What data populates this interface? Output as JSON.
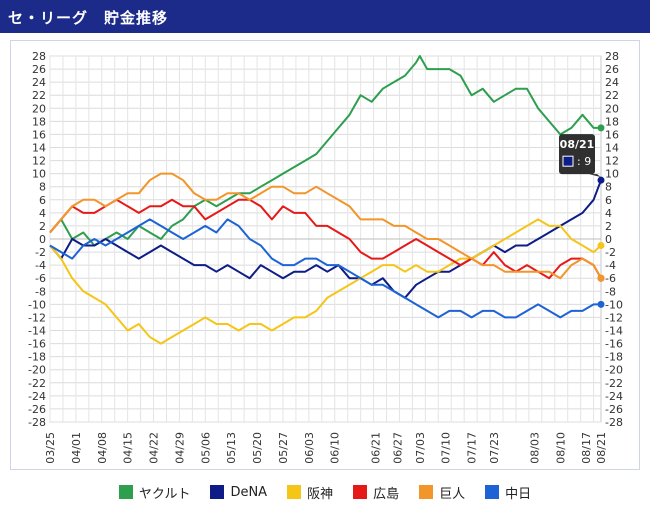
{
  "header": {
    "title": "セ・リーグ　貯金推移"
  },
  "tooltip": {
    "date": "08/21",
    "value": "9"
  },
  "legend": [
    {
      "label": "ヤクルト",
      "color": "#2e9e4f"
    },
    {
      "label": "DeNA",
      "color": "#0e1c87"
    },
    {
      "label": "阪神",
      "color": "#f5c518"
    },
    {
      "label": "広島",
      "color": "#e61919"
    },
    {
      "label": "巨人",
      "color": "#f2952a"
    },
    {
      "label": "中日",
      "color": "#1d63d6"
    }
  ],
  "chart_data": {
    "type": "line",
    "title": "",
    "xlabel": "",
    "ylabel": "",
    "ylim": [
      -28,
      28
    ],
    "yticks": [
      28,
      26,
      24,
      22,
      20,
      18,
      16,
      14,
      12,
      10,
      8,
      6,
      4,
      2,
      0,
      -2,
      -4,
      -6,
      -8,
      -10,
      -12,
      -14,
      -16,
      -18,
      -20,
      -22,
      -24,
      -26,
      -28
    ],
    "xlim": [
      0,
      149
    ],
    "x_ticks": [
      {
        "label": "03/25",
        "x": 0
      },
      {
        "label": "04/01",
        "x": 7
      },
      {
        "label": "04/08",
        "x": 14
      },
      {
        "label": "04/15",
        "x": 21
      },
      {
        "label": "04/22",
        "x": 28
      },
      {
        "label": "04/29",
        "x": 35
      },
      {
        "label": "05/06",
        "x": 42
      },
      {
        "label": "05/13",
        "x": 49
      },
      {
        "label": "05/20",
        "x": 56
      },
      {
        "label": "05/27",
        "x": 63
      },
      {
        "label": "06/03",
        "x": 70
      },
      {
        "label": "06/10",
        "x": 77
      },
      {
        "label": "06/21",
        "x": 88
      },
      {
        "label": "06/27",
        "x": 94
      },
      {
        "label": "07/03",
        "x": 100
      },
      {
        "label": "07/10",
        "x": 107
      },
      {
        "label": "07/17",
        "x": 114
      },
      {
        "label": "07/23",
        "x": 120
      },
      {
        "label": "08/03",
        "x": 131
      },
      {
        "label": "08/10",
        "x": 138
      },
      {
        "label": "08/17",
        "x": 145
      },
      {
        "label": "08/21",
        "x": 149
      }
    ],
    "grid": true,
    "series": [
      {
        "name": "ヤクルト",
        "color": "#2e9e4f",
        "x": [
          0,
          3,
          6,
          9,
          12,
          15,
          18,
          21,
          24,
          27,
          30,
          33,
          36,
          39,
          42,
          45,
          48,
          51,
          54,
          57,
          60,
          63,
          66,
          69,
          72,
          75,
          78,
          81,
          84,
          87,
          90,
          93,
          96,
          99,
          100,
          102,
          105,
          108,
          111,
          114,
          117,
          120,
          123,
          126,
          129,
          132,
          135,
          138,
          141,
          144,
          147,
          149
        ],
        "y": [
          1,
          3,
          0,
          1,
          -1,
          0,
          1,
          0,
          2,
          1,
          0,
          2,
          3,
          5,
          6,
          5,
          6,
          7,
          7,
          8,
          9,
          10,
          11,
          12,
          13,
          15,
          17,
          19,
          22,
          21,
          23,
          24,
          25,
          27,
          28,
          26,
          26,
          26,
          25,
          22,
          23,
          21,
          22,
          23,
          23,
          20,
          18,
          16,
          17,
          19,
          17,
          17
        ]
      },
      {
        "name": "DeNA",
        "color": "#0e1c87",
        "x": [
          0,
          3,
          6,
          9,
          12,
          15,
          18,
          21,
          24,
          27,
          30,
          33,
          36,
          39,
          42,
          45,
          48,
          51,
          54,
          57,
          60,
          63,
          66,
          69,
          72,
          75,
          78,
          81,
          84,
          87,
          90,
          93,
          96,
          99,
          102,
          105,
          108,
          111,
          114,
          117,
          120,
          123,
          126,
          129,
          132,
          135,
          138,
          141,
          144,
          147,
          149
        ],
        "y": [
          -1,
          -3,
          0,
          -1,
          -1,
          0,
          -1,
          -2,
          -3,
          -2,
          -1,
          -2,
          -3,
          -4,
          -4,
          -5,
          -4,
          -5,
          -6,
          -4,
          -5,
          -6,
          -5,
          -5,
          -4,
          -5,
          -4,
          -6,
          -6,
          -7,
          -6,
          -8,
          -9,
          -7,
          -6,
          -5,
          -5,
          -4,
          -3,
          -2,
          -1,
          -2,
          -1,
          -1,
          0,
          1,
          2,
          3,
          4,
          6,
          9
        ]
      },
      {
        "name": "阪神",
        "color": "#f5c518",
        "x": [
          0,
          3,
          6,
          9,
          12,
          15,
          18,
          21,
          24,
          27,
          30,
          33,
          36,
          39,
          42,
          45,
          48,
          51,
          54,
          57,
          60,
          63,
          66,
          69,
          72,
          75,
          78,
          81,
          84,
          87,
          90,
          93,
          96,
          99,
          102,
          105,
          108,
          111,
          114,
          117,
          120,
          123,
          126,
          129,
          132,
          135,
          138,
          141,
          144,
          147,
          149
        ],
        "y": [
          -1,
          -3,
          -6,
          -8,
          -9,
          -10,
          -12,
          -14,
          -13,
          -15,
          -16,
          -15,
          -14,
          -13,
          -12,
          -13,
          -13,
          -14,
          -13,
          -13,
          -14,
          -13,
          -12,
          -12,
          -11,
          -9,
          -8,
          -7,
          -6,
          -5,
          -4,
          -4,
          -5,
          -4,
          -5,
          -5,
          -4,
          -3,
          -3,
          -2,
          -1,
          0,
          1,
          2,
          3,
          2,
          2,
          0,
          -1,
          -2,
          -1
        ]
      },
      {
        "name": "広島",
        "color": "#e61919",
        "x": [
          0,
          3,
          6,
          9,
          12,
          15,
          18,
          21,
          24,
          27,
          30,
          33,
          36,
          39,
          42,
          45,
          48,
          51,
          54,
          57,
          60,
          63,
          66,
          69,
          72,
          75,
          78,
          81,
          84,
          87,
          90,
          93,
          96,
          99,
          102,
          105,
          108,
          111,
          114,
          117,
          120,
          123,
          126,
          129,
          132,
          135,
          138,
          141,
          144,
          147,
          149
        ],
        "y": [
          1,
          3,
          5,
          4,
          4,
          5,
          6,
          5,
          4,
          5,
          5,
          6,
          5,
          5,
          3,
          4,
          5,
          6,
          6,
          5,
          3,
          5,
          4,
          4,
          2,
          2,
          1,
          0,
          -2,
          -3,
          -3,
          -2,
          -1,
          0,
          -1,
          -2,
          -3,
          -4,
          -3,
          -4,
          -2,
          -4,
          -5,
          -4,
          -5,
          -6,
          -4,
          -3,
          -3,
          -4,
          -6
        ]
      },
      {
        "name": "巨人",
        "color": "#f2952a",
        "x": [
          0,
          3,
          6,
          9,
          12,
          15,
          18,
          21,
          24,
          27,
          30,
          33,
          36,
          39,
          42,
          45,
          48,
          51,
          54,
          57,
          60,
          63,
          66,
          69,
          72,
          75,
          78,
          81,
          84,
          87,
          90,
          93,
          96,
          99,
          102,
          105,
          108,
          111,
          114,
          117,
          120,
          123,
          126,
          129,
          132,
          135,
          138,
          141,
          144,
          147,
          149
        ],
        "y": [
          1,
          3,
          5,
          6,
          6,
          5,
          6,
          7,
          7,
          9,
          10,
          10,
          9,
          7,
          6,
          6,
          7,
          7,
          6,
          7,
          8,
          8,
          7,
          7,
          8,
          7,
          6,
          5,
          3,
          3,
          3,
          2,
          2,
          1,
          0,
          0,
          -1,
          -2,
          -3,
          -4,
          -4,
          -5,
          -5,
          -5,
          -5,
          -5,
          -6,
          -4,
          -3,
          -4,
          -6
        ]
      },
      {
        "name": "中日",
        "color": "#1d63d6",
        "x": [
          0,
          3,
          6,
          9,
          12,
          15,
          18,
          21,
          24,
          27,
          30,
          33,
          36,
          39,
          42,
          45,
          48,
          51,
          54,
          57,
          60,
          63,
          66,
          69,
          72,
          75,
          78,
          81,
          84,
          87,
          90,
          93,
          96,
          99,
          102,
          105,
          108,
          111,
          114,
          117,
          120,
          123,
          126,
          129,
          132,
          135,
          138,
          141,
          144,
          147,
          149
        ],
        "y": [
          -1,
          -2,
          -3,
          -1,
          0,
          -1,
          0,
          1,
          2,
          3,
          2,
          1,
          0,
          1,
          2,
          1,
          3,
          2,
          0,
          -1,
          -3,
          -4,
          -4,
          -3,
          -3,
          -4,
          -4,
          -5,
          -6,
          -7,
          -7,
          -8,
          -9,
          -10,
          -11,
          -12,
          -11,
          -11,
          -12,
          -11,
          -11,
          -12,
          -12,
          -11,
          -10,
          -11,
          -12,
          -11,
          -11,
          -10,
          -10
        ]
      }
    ]
  }
}
